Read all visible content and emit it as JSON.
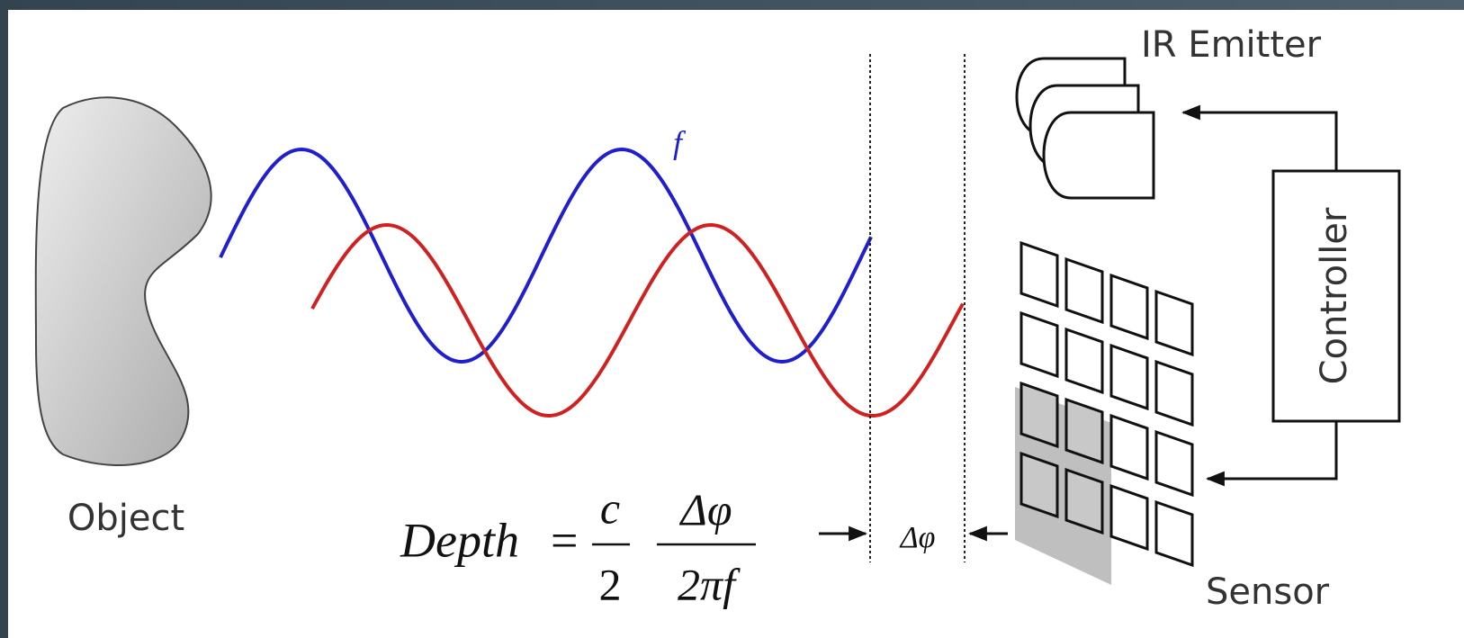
{
  "labels": {
    "object": "Object",
    "ir_emitter": "IR Emitter",
    "controller": "Controller",
    "sensor": "Sensor",
    "frequency": "f",
    "phase_shift": "Δφ"
  },
  "formula": {
    "lhs": "Depth",
    "equals": "=",
    "numerator_1": "c",
    "denominator_1": "2",
    "numerator_2": "Δφ",
    "denominator_2": "2πf"
  }
}
